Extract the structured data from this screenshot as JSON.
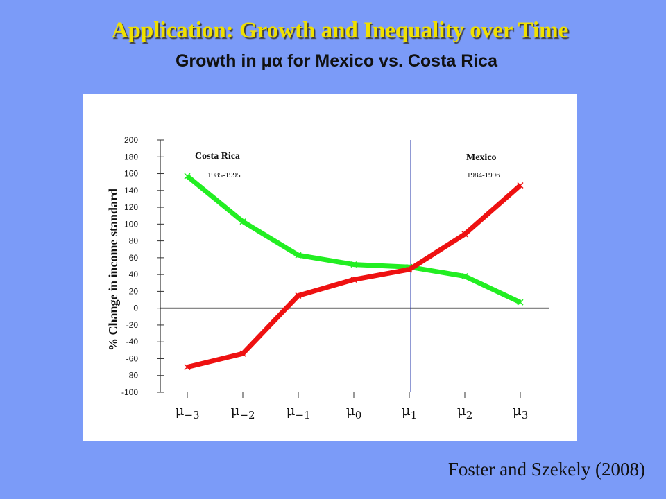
{
  "slide": {
    "title": "Application: Growth and Inequality over Time",
    "subtitle_prefix": "Growth in ",
    "subtitle_symbol": "μα",
    "subtitle_suffix": " for Mexico vs. Costa Rica",
    "citation": "Foster and Szekely (2008)"
  },
  "colors": {
    "background": "#7b9bf8",
    "title": "#f0e000",
    "costa_rica_series": "#22ee22",
    "mexico_series": "#ee1111",
    "divider": "#2233aa"
  },
  "chart_data": {
    "type": "line",
    "title": "",
    "xlabel": "",
    "ylabel": "% Change in income standard",
    "categories": [
      "μ−3",
      "μ−2",
      "μ−1",
      "μ0",
      "μ1",
      "μ2",
      "μ3"
    ],
    "category_symbols": [
      {
        "base": "μ",
        "sub": "−3"
      },
      {
        "base": "μ",
        "sub": "−2"
      },
      {
        "base": "μ",
        "sub": "−1"
      },
      {
        "base": "μ",
        "sub": "0"
      },
      {
        "base": "μ",
        "sub": "1"
      },
      {
        "base": "μ",
        "sub": "2"
      },
      {
        "base": "μ",
        "sub": "3"
      }
    ],
    "yticks": [
      200,
      180,
      160,
      140,
      120,
      100,
      80,
      60,
      40,
      20,
      0,
      -20,
      -40,
      -60,
      -80,
      -100
    ],
    "ylim": [
      -100,
      200
    ],
    "grid": false,
    "series": [
      {
        "name": "Costa Rica",
        "period": "1985-1995",
        "values": [
          157,
          103,
          63,
          52,
          49,
          38,
          7
        ]
      },
      {
        "name": "Mexico",
        "period": "1984-1996",
        "values": [
          -70,
          -54,
          15,
          34,
          46,
          88,
          146
        ]
      }
    ],
    "divider_category": "μ1"
  }
}
